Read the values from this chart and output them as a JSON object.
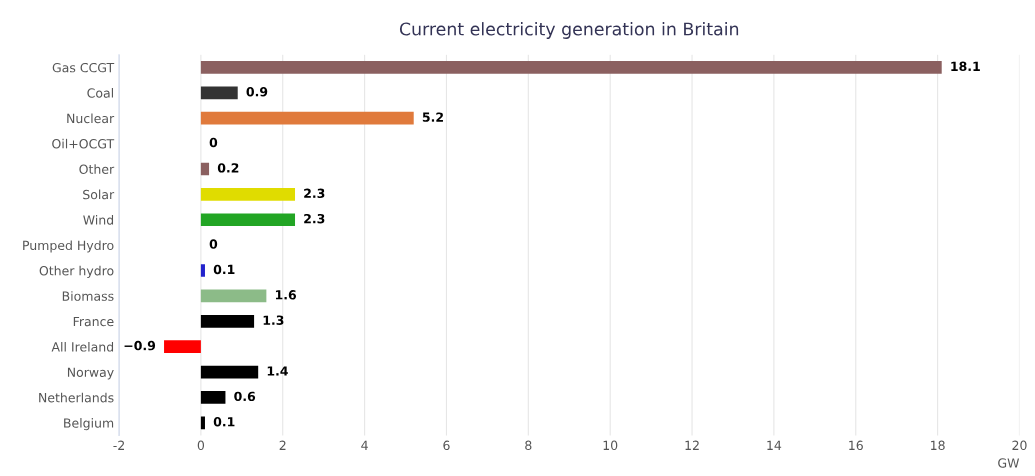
{
  "chart_data": {
    "type": "bar",
    "orientation": "horizontal",
    "title": "Current electricity generation in Britain",
    "xlabel": "GW",
    "categories": [
      "Gas CCGT",
      "Coal",
      "Nuclear",
      "Oil+OCGT",
      "Other",
      "Solar",
      "Wind",
      "Pumped Hydro",
      "Other hydro",
      "Biomass",
      "France",
      "All Ireland",
      "Norway",
      "Netherlands",
      "Belgium"
    ],
    "values": [
      18.1,
      0.9,
      5.2,
      0,
      0.2,
      2.3,
      2.3,
      0,
      0.1,
      1.6,
      1.3,
      -0.9,
      1.4,
      0.6,
      0.1
    ],
    "colors": [
      "#8b6060",
      "#333333",
      "#e07a3c",
      "#444444",
      "#8b6060",
      "#e0dc00",
      "#22a524",
      "#2244cc",
      "#2222cc",
      "#8cbb88",
      "#000000",
      "#ff0000",
      "#000000",
      "#000000",
      "#000000"
    ],
    "xlim": [
      -2,
      20
    ],
    "xticks": [
      -2,
      0,
      2,
      4,
      6,
      8,
      10,
      12,
      14,
      16,
      18,
      20
    ],
    "grid": "x",
    "data_labels": true
  }
}
